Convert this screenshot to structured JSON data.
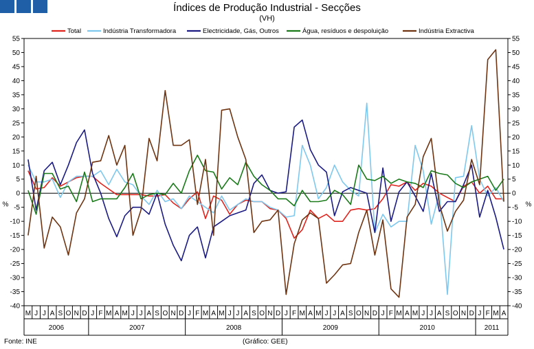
{
  "header": {
    "title": "Índices de Produção Industrial - Secções",
    "subtitle": "(VH)"
  },
  "footer": {
    "source": "Fonte: INE",
    "credit": "(Gráfico: GEE)"
  },
  "chart_data": {
    "type": "line",
    "title": "Índices de Produção Industrial - Secções",
    "subtitle": "(VH)",
    "ylabel_left": "%",
    "ylabel_right": "%",
    "ylim": [
      -40,
      55
    ],
    "ytick_step": 5,
    "yticks": [
      "-40",
      "-35",
      "-30",
      "-25",
      "-20",
      "-15",
      "-10",
      "-5",
      "0",
      "5",
      "10",
      "15",
      "20",
      "25",
      "30",
      "35",
      "40",
      "45",
      "50",
      "55"
    ],
    "grid": false,
    "legend_position": "top",
    "month_letters": [
      "M",
      "J",
      "J",
      "A",
      "S",
      "O",
      "N",
      "D",
      "J",
      "F",
      "M",
      "A",
      "M",
      "J",
      "J",
      "A",
      "S",
      "O",
      "N",
      "D",
      "J",
      "F",
      "M",
      "A",
      "M",
      "J",
      "J",
      "A",
      "S",
      "O",
      "N",
      "D",
      "J",
      "F",
      "M",
      "A",
      "M",
      "J",
      "J",
      "A",
      "S",
      "O",
      "N",
      "D",
      "J",
      "F",
      "M",
      "A",
      "M",
      "J",
      "J",
      "A",
      "S",
      "O",
      "N",
      "D",
      "J",
      "F",
      "M",
      "A"
    ],
    "years": [
      {
        "label": "2006",
        "start": 0,
        "end": 8
      },
      {
        "label": "2007",
        "start": 8,
        "end": 20
      },
      {
        "label": "2008",
        "start": 20,
        "end": 32
      },
      {
        "label": "2009",
        "start": 32,
        "end": 44
      },
      {
        "label": "2010",
        "start": 44,
        "end": 56
      },
      {
        "label": "2011",
        "start": 56,
        "end": 60
      }
    ],
    "series": [
      {
        "name": "Total",
        "color": "#e0231c",
        "width": 1.6,
        "values": [
          8,
          1.5,
          2,
          5.5,
          2.5,
          4,
          5.5,
          6,
          6,
          3.5,
          1.5,
          -0.5,
          -0.5,
          -0.5,
          -0.5,
          -1,
          -1,
          -0.5,
          -3.5,
          -5.5,
          -2,
          0.5,
          -9,
          -1,
          -2.5,
          -7.5,
          -4,
          -2.5,
          -3,
          -3,
          -5.5,
          -6,
          -9,
          -16,
          -13,
          -6,
          -9,
          -7.5,
          -10,
          -10,
          -6,
          -5.5,
          -6,
          -5.5,
          -2,
          3,
          2.5,
          4,
          1,
          3.5,
          2.5,
          0,
          -1.5,
          -3,
          2.5,
          4,
          0,
          2.5,
          -2,
          -2
        ]
      },
      {
        "name": "Indústria Transformadora",
        "color": "#7ec8ee",
        "width": 1.6,
        "values": [
          10,
          4,
          4,
          5,
          -1.5,
          4,
          6,
          6,
          6,
          8,
          3,
          8.5,
          4,
          3,
          -1,
          -4,
          1,
          -3,
          -2,
          -5.5,
          -1,
          -3,
          -5,
          -7,
          -1,
          -6,
          -4,
          -2,
          -3,
          -3,
          -5,
          -6,
          -8.5,
          -8,
          17,
          10,
          -2,
          2,
          10,
          4,
          1,
          -1,
          32,
          -14,
          -7.5,
          -12,
          -10,
          -10,
          17,
          8,
          -11,
          0,
          -36,
          5.5,
          6,
          24,
          5,
          -1,
          2,
          -3
        ]
      },
      {
        "name": "Electricidade, Gás, Outros",
        "color": "#1a1a82",
        "width": 1.6,
        "values": [
          12,
          -6,
          8,
          11,
          3,
          10,
          18,
          22.5,
          7,
          0,
          -9,
          -15.5,
          -8,
          -5,
          -5,
          -7.5,
          0,
          -11,
          -18.5,
          -24,
          -15,
          -12,
          -23,
          -12,
          -10,
          -8,
          -7,
          -6,
          3.5,
          6.5,
          1,
          0,
          0.5,
          23.5,
          26,
          15.5,
          10,
          7.5,
          -8,
          0.5,
          2,
          1,
          0,
          -14,
          9,
          -10,
          0.5,
          4,
          -1,
          -6.5,
          7,
          -6.5,
          -3,
          -3,
          3,
          10,
          -8.5,
          1,
          -8.5,
          -20
        ]
      },
      {
        "name": "Água, resíduos e despoluição",
        "color": "#1a7a1a",
        "width": 1.6,
        "values": [
          1,
          -7.5,
          7,
          7,
          1.5,
          2.5,
          -3,
          7.5,
          -3,
          -2,
          -2,
          -2,
          2,
          7,
          -2,
          -0.5,
          0,
          -0.5,
          3.5,
          0,
          8,
          13.5,
          8,
          7.5,
          1.5,
          5.5,
          3,
          11,
          6,
          3,
          1,
          -2,
          -2,
          -4.5,
          1,
          -3,
          -3,
          -2.5,
          1,
          -0.5,
          -4,
          10,
          5,
          4.5,
          6,
          3.5,
          5,
          4,
          3.5,
          2,
          8,
          7,
          6.5,
          3.5,
          2,
          4,
          5,
          6,
          1,
          5
        ]
      },
      {
        "name": "Indústria Extractiva",
        "color": "#6e3310",
        "width": 1.6,
        "values": [
          -15,
          6,
          -19.5,
          -8.5,
          -12,
          -22,
          -7,
          -2,
          11,
          11.5,
          20.5,
          10,
          17,
          -15,
          -6,
          19.5,
          11.5,
          36.5,
          17,
          17,
          19,
          -4,
          12,
          -15,
          29.5,
          30,
          20,
          12,
          -14,
          -10,
          -9.5,
          -6,
          -36,
          -18,
          -9.5,
          -7,
          -9,
          -32,
          -29,
          -25.5,
          -25,
          -14,
          -6,
          -22,
          -9.5,
          -34,
          -37,
          -8.5,
          -4,
          13,
          19.5,
          -4,
          -13.5,
          -6.5,
          -2.5,
          12,
          3,
          47.5,
          51,
          -3
        ]
      }
    ]
  }
}
